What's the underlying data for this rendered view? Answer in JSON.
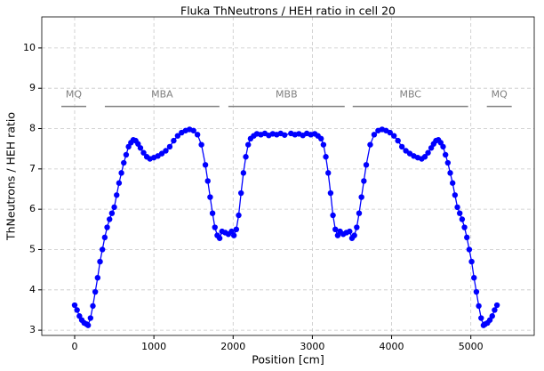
{
  "chart_data": {
    "type": "line",
    "title": "Fluka ThNeutrons / HEH ratio in cell 20",
    "x_label": "Position [cm]",
    "y_label": "ThNeutrons / HEH ratio",
    "x": [
      0,
      30,
      60,
      90,
      120,
      150,
      170,
      200,
      230,
      260,
      290,
      320,
      350,
      380,
      410,
      440,
      470,
      500,
      530,
      560,
      590,
      620,
      650,
      680,
      710,
      740,
      770,
      800,
      830,
      870,
      910,
      950,
      1000,
      1050,
      1100,
      1150,
      1200,
      1250,
      1300,
      1350,
      1400,
      1450,
      1500,
      1550,
      1600,
      1650,
      1680,
      1710,
      1740,
      1770,
      1800,
      1830,
      1860,
      1900,
      1940,
      1980,
      2010,
      2040,
      2070,
      2100,
      2130,
      2160,
      2190,
      2220,
      2260,
      2300,
      2350,
      2400,
      2450,
      2500,
      2550,
      2600,
      2650,
      2730,
      2780,
      2830,
      2880,
      2930,
      2980,
      3030,
      3070,
      3110,
      3140,
      3170,
      3200,
      3230,
      3260,
      3290,
      3320,
      3350,
      3390,
      3430,
      3470,
      3500,
      3530,
      3560,
      3590,
      3620,
      3650,
      3680,
      3730,
      3780,
      3830,
      3880,
      3930,
      3980,
      4030,
      4080,
      4130,
      4180,
      4230,
      4280,
      4330,
      4380,
      4420,
      4460,
      4500,
      4530,
      4560,
      4590,
      4620,
      4650,
      4680,
      4710,
      4740,
      4770,
      4800,
      4830,
      4860,
      4890,
      4920,
      4950,
      4980,
      5010,
      5040,
      5070,
      5100,
      5130,
      5160,
      5180,
      5210,
      5240,
      5270,
      5300,
      5330
    ],
    "series": [
      {
        "color": "#0000ff",
        "values": [
          3.62,
          3.5,
          3.35,
          3.25,
          3.18,
          3.15,
          3.12,
          3.3,
          3.6,
          3.95,
          4.3,
          4.7,
          5.0,
          5.3,
          5.55,
          5.75,
          5.9,
          6.05,
          6.35,
          6.65,
          6.9,
          7.15,
          7.35,
          7.55,
          7.65,
          7.72,
          7.7,
          7.62,
          7.52,
          7.4,
          7.3,
          7.25,
          7.28,
          7.32,
          7.38,
          7.45,
          7.55,
          7.7,
          7.82,
          7.9,
          7.95,
          7.98,
          7.95,
          7.85,
          7.6,
          7.1,
          6.7,
          6.3,
          5.9,
          5.55,
          5.35,
          5.28,
          5.45,
          5.42,
          5.38,
          5.45,
          5.35,
          5.5,
          5.85,
          6.4,
          6.9,
          7.3,
          7.6,
          7.75,
          7.82,
          7.87,
          7.85,
          7.88,
          7.83,
          7.87,
          7.85,
          7.88,
          7.84,
          7.88,
          7.85,
          7.87,
          7.83,
          7.88,
          7.85,
          7.87,
          7.82,
          7.75,
          7.6,
          7.3,
          6.9,
          6.4,
          5.85,
          5.5,
          5.35,
          5.45,
          5.38,
          5.42,
          5.45,
          5.28,
          5.35,
          5.55,
          5.9,
          6.3,
          6.7,
          7.1,
          7.6,
          7.85,
          7.95,
          7.98,
          7.95,
          7.9,
          7.82,
          7.7,
          7.55,
          7.45,
          7.38,
          7.32,
          7.28,
          7.25,
          7.3,
          7.4,
          7.52,
          7.62,
          7.7,
          7.72,
          7.65,
          7.55,
          7.35,
          7.15,
          6.9,
          6.65,
          6.35,
          6.05,
          5.9,
          5.75,
          5.55,
          5.3,
          5.0,
          4.7,
          4.3,
          3.95,
          3.6,
          3.3,
          3.12,
          3.15,
          3.18,
          3.25,
          3.35,
          3.5,
          3.62
        ]
      }
    ],
    "xlim": [
      -415,
      5800
    ],
    "ylim": [
      2.87,
      10.77
    ],
    "xticks": [
      0,
      1000,
      2000,
      3000,
      4000,
      5000
    ],
    "yticks": [
      3,
      4,
      5,
      6,
      7,
      8,
      9,
      10
    ],
    "grid": true,
    "annotation_color": "#808080",
    "annotations": [
      {
        "text": "MQ",
        "x": [
          -168,
          146
        ],
        "y": 8.55
      },
      {
        "text": "MBA",
        "x": [
          381,
          1827
        ],
        "y": 8.55
      },
      {
        "text": "MBB",
        "x": [
          1940,
          3408
        ],
        "y": 8.55
      },
      {
        "text": "MBC",
        "x": [
          3509,
          4966
        ],
        "y": 8.55
      },
      {
        "text": "MQ",
        "x": [
          5202,
          5516
        ],
        "y": 8.55
      }
    ]
  }
}
